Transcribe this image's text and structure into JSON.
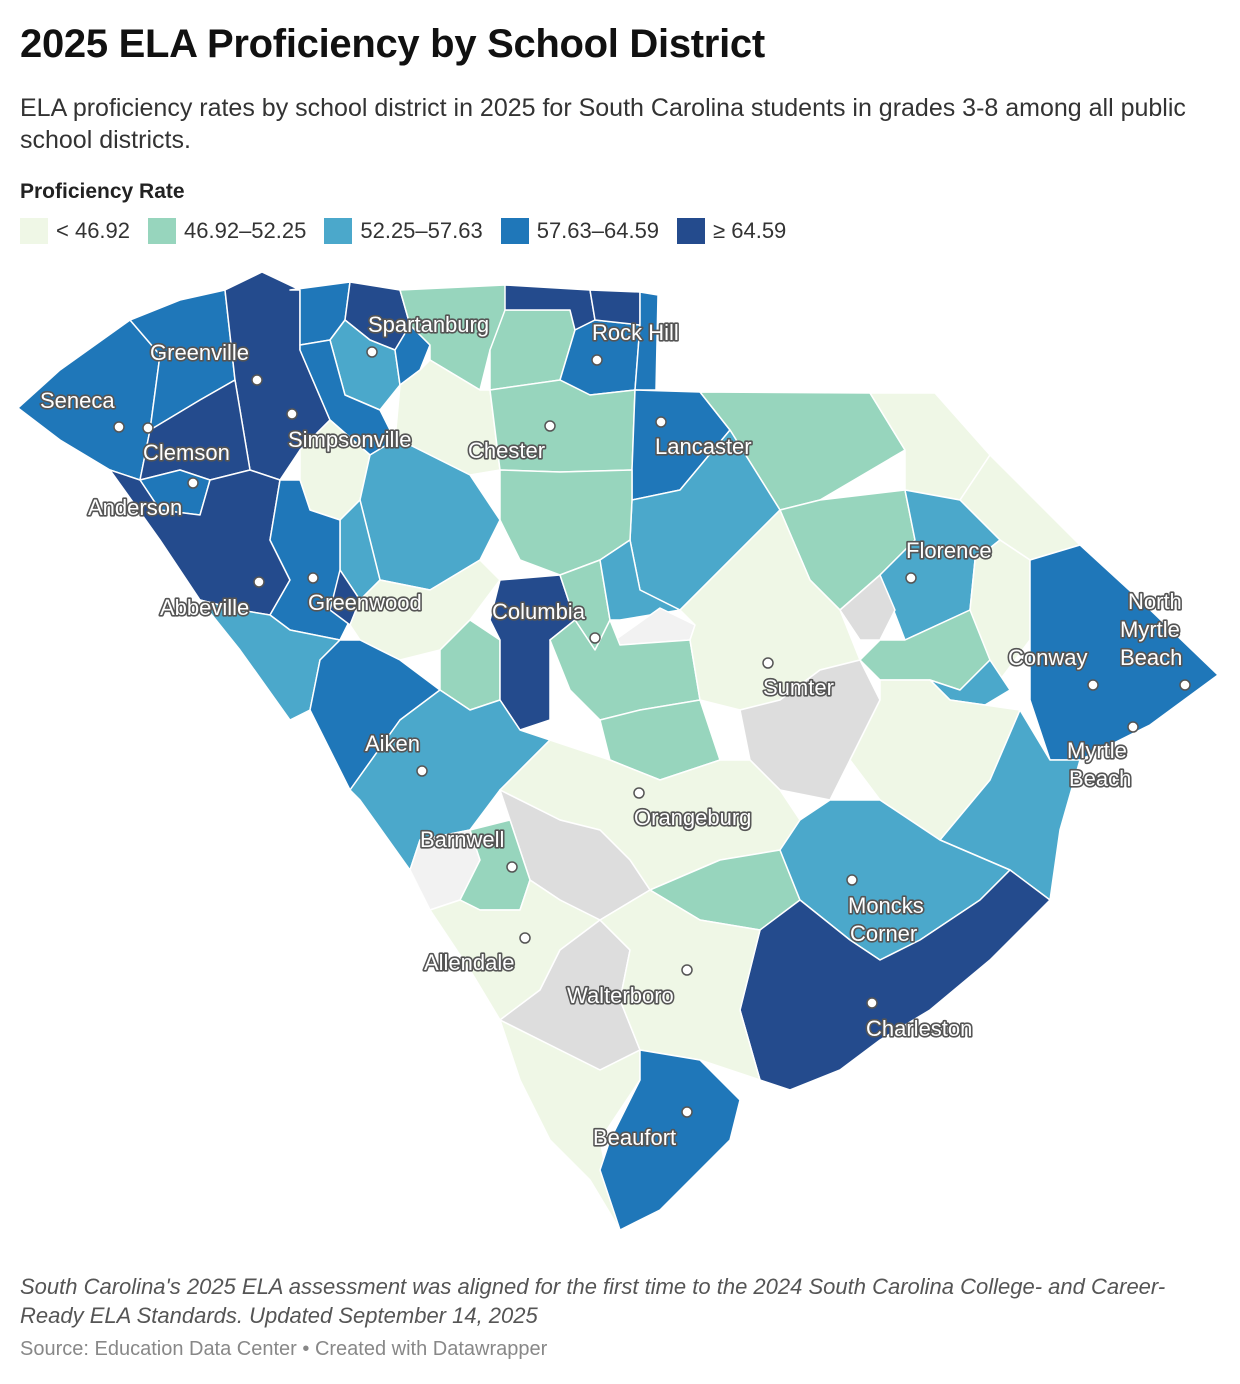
{
  "header": {
    "title": "2025 ELA Proficiency by School District",
    "subtitle": "ELA proficiency rates by school district in 2025 for South Carolina students in grades 3-8 among all public school districts."
  },
  "legend": {
    "title": "Proficiency Rate",
    "items": [
      {
        "label": "< 46.92",
        "color": "#eff7e6"
      },
      {
        "label": "46.92–52.25",
        "color": "#97d5bd"
      },
      {
        "label": "52.25–57.63",
        "color": "#4ba8cb"
      },
      {
        "label": "57.63–64.59",
        "color": "#1f77b9"
      },
      {
        "label": "≥ 64.59",
        "color": "#244b8d"
      }
    ],
    "no_data_color": "#dddddd"
  },
  "cities": {
    "spartanburg": "Spartanburg",
    "rock_hill": "Rock Hill",
    "greenville": "Greenville",
    "seneca": "Seneca",
    "clemson": "Clemson",
    "simpsonville": "Simpsonville",
    "chester": "Chester",
    "lancaster": "Lancaster",
    "anderson": "Anderson",
    "florence": "Florence",
    "abbeville": "Abbeville",
    "greenwood": "Greenwood",
    "columbia": "Columbia",
    "north_myrtle_beach_1": "North",
    "north_myrtle_beach_2": "Myrtle",
    "north_myrtle_beach_3": "Beach",
    "conway": "Conway",
    "sumter": "Sumter",
    "aiken": "Aiken",
    "myrtle_beach_1": "Myrtle",
    "myrtle_beach_2": "Beach",
    "orangeburg": "Orangeburg",
    "barnwell": "Barnwell",
    "moncks_corner_1": "Moncks",
    "moncks_corner_2": "Corner",
    "allendale": "Allendale",
    "walterboro": "Walterboro",
    "charleston": "Charleston",
    "beaufort": "Beaufort"
  },
  "footer": {
    "notes": "South Carolina's 2025 ELA assessment was aligned for the first time to the 2024 South Carolina College- and Career-Ready ELA Standards. Updated September 14, 2025",
    "source": "Source: Education Data Center • Created with Datawrapper"
  }
}
